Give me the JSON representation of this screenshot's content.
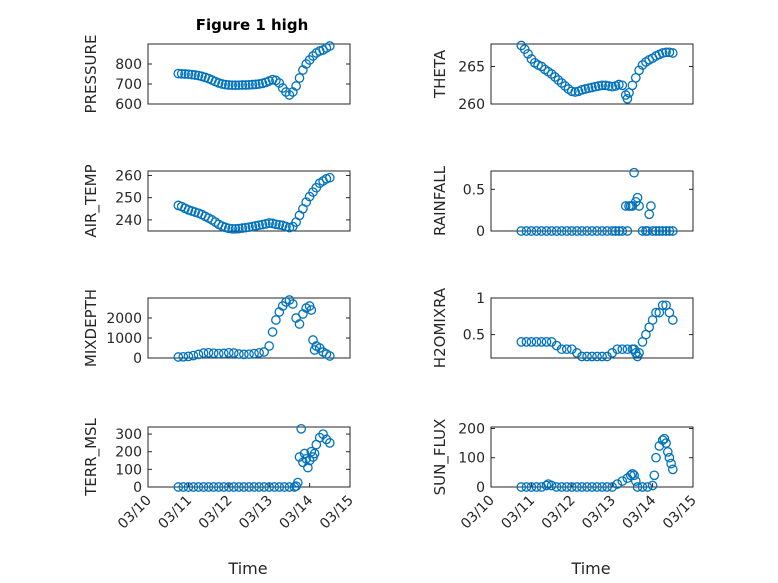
{
  "figure": {
    "title": "Figure 1 high",
    "marker_color": "#0072bd"
  },
  "chart_data": [
    {
      "type": "scatter",
      "panel": "PRESSURE",
      "ylabel": "PRESSURE",
      "xlabel": "",
      "xlim": [
        "03/10",
        "03/15"
      ],
      "ylim": [
        600,
        900
      ],
      "yticks": [
        600,
        700,
        800
      ],
      "ytick_labels": [
        "600",
        "700",
        "800"
      ],
      "grid": true,
      "minor_grid": true,
      "title": "Figure 1 high",
      "x": [
        "03/10 18:00",
        "03/10 20:00",
        "03/10 22:00",
        "03/11 00:00",
        "03/11 02:00",
        "03/11 04:00",
        "03/11 06:00",
        "03/11 08:00",
        "03/11 10:00",
        "03/11 12:00",
        "03/11 14:00",
        "03/11 16:00",
        "03/11 18:00",
        "03/11 20:00",
        "03/11 22:00",
        "03/12 00:00",
        "03/12 02:00",
        "03/12 04:00",
        "03/12 06:00",
        "03/12 08:00",
        "03/12 10:00",
        "03/12 12:00",
        "03/12 14:00",
        "03/12 16:00",
        "03/12 18:00",
        "03/12 20:00",
        "03/12 22:00",
        "03/13 00:00",
        "03/13 02:00",
        "03/13 04:00",
        "03/13 06:00",
        "03/13 08:00",
        "03/13 10:00",
        "03/13 12:00",
        "03/13 14:00",
        "03/13 16:00",
        "03/13 18:00",
        "03/13 20:00",
        "03/13 22:00",
        "03/14 00:00",
        "03/14 02:00",
        "03/14 04:00",
        "03/14 06:00",
        "03/14 08:00",
        "03/14 10:00",
        "03/14 12:00"
      ],
      "y": [
        752,
        751,
        750,
        749,
        747,
        745,
        742,
        738,
        733,
        727,
        720,
        712,
        705,
        700,
        697,
        695,
        694,
        694,
        694,
        695,
        695,
        696,
        697,
        698,
        700,
        703,
        708,
        715,
        722,
        718,
        705,
        680,
        660,
        645,
        660,
        690,
        730,
        770,
        800,
        820,
        840,
        855,
        865,
        870,
        880,
        890
      ]
    },
    {
      "type": "scatter",
      "panel": "THETA",
      "ylabel": "THETA",
      "xlabel": "",
      "xlim": [
        "03/10",
        "03/15"
      ],
      "ylim": [
        260,
        268
      ],
      "yticks": [
        260,
        265
      ],
      "ytick_labels": [
        "260",
        "265"
      ],
      "grid": true,
      "minor_grid": true,
      "x": [
        "03/10 18:00",
        "03/10 20:00",
        "03/10 22:00",
        "03/11 00:00",
        "03/11 02:00",
        "03/11 04:00",
        "03/11 06:00",
        "03/11 08:00",
        "03/11 10:00",
        "03/11 12:00",
        "03/11 14:00",
        "03/11 16:00",
        "03/11 18:00",
        "03/11 20:00",
        "03/11 22:00",
        "03/12 00:00",
        "03/12 02:00",
        "03/12 04:00",
        "03/12 06:00",
        "03/12 08:00",
        "03/12 10:00",
        "03/12 12:00",
        "03/12 14:00",
        "03/12 16:00",
        "03/12 18:00",
        "03/12 20:00",
        "03/12 22:00",
        "03/13 00:00",
        "03/13 02:00",
        "03/13 04:00",
        "03/13 06:00",
        "03/13 08:00",
        "03/13 09:00",
        "03/13 10:00",
        "03/13 12:00",
        "03/13 14:00",
        "03/13 16:00",
        "03/13 18:00",
        "03/13 20:00",
        "03/13 22:00",
        "03/14 00:00",
        "03/14 02:00",
        "03/14 04:00",
        "03/14 06:00",
        "03/14 08:00",
        "03/14 10:00",
        "03/14 12:00"
      ],
      "y": [
        267.8,
        267.3,
        266.7,
        266.0,
        265.5,
        265.2,
        265.0,
        264.6,
        264.3,
        264.0,
        263.6,
        263.2,
        262.8,
        262.4,
        262.0,
        261.7,
        261.6,
        261.7,
        261.9,
        262.0,
        262.1,
        262.2,
        262.3,
        262.4,
        262.5,
        262.5,
        262.4,
        262.3,
        262.4,
        262.6,
        262.5,
        261.2,
        260.7,
        261.5,
        262.5,
        263.5,
        264.5,
        265.2,
        265.6,
        265.9,
        266.1,
        266.4,
        266.6,
        266.8,
        266.9,
        266.9,
        266.8
      ]
    },
    {
      "type": "scatter",
      "panel": "AIR_TEMP",
      "ylabel": "AIR_TEMP",
      "xlabel": "",
      "xlim": [
        "03/10",
        "03/15"
      ],
      "ylim": [
        235,
        262
      ],
      "yticks": [
        240,
        250,
        260
      ],
      "ytick_labels": [
        "240",
        "250",
        "260"
      ],
      "grid": true,
      "minor_grid": true,
      "x": [
        "03/10 18:00",
        "03/10 20:00",
        "03/10 22:00",
        "03/11 00:00",
        "03/11 02:00",
        "03/11 04:00",
        "03/11 06:00",
        "03/11 08:00",
        "03/11 10:00",
        "03/11 12:00",
        "03/11 14:00",
        "03/11 16:00",
        "03/11 18:00",
        "03/11 20:00",
        "03/11 22:00",
        "03/12 00:00",
        "03/12 02:00",
        "03/12 04:00",
        "03/12 06:00",
        "03/12 08:00",
        "03/12 10:00",
        "03/12 12:00",
        "03/12 14:00",
        "03/12 16:00",
        "03/12 18:00",
        "03/12 20:00",
        "03/12 22:00",
        "03/13 00:00",
        "03/13 02:00",
        "03/13 04:00",
        "03/13 06:00",
        "03/13 08:00",
        "03/13 10:00",
        "03/13 12:00",
        "03/13 14:00",
        "03/13 16:00",
        "03/13 18:00",
        "03/13 20:00",
        "03/13 22:00",
        "03/14 00:00",
        "03/14 02:00",
        "03/14 04:00",
        "03/14 06:00",
        "03/14 08:00",
        "03/14 10:00",
        "03/14 12:00"
      ],
      "y": [
        246.5,
        246.0,
        245.2,
        244.5,
        244.0,
        243.5,
        243.0,
        242.4,
        241.6,
        240.8,
        240.0,
        239.0,
        238.0,
        237.2,
        236.6,
        236.2,
        236.0,
        236.0,
        236.1,
        236.3,
        236.5,
        236.7,
        237.0,
        237.3,
        237.6,
        237.9,
        238.2,
        238.6,
        238.4,
        238.0,
        237.8,
        237.5,
        237.0,
        236.5,
        237.0,
        239.0,
        242.0,
        245.0,
        248.0,
        250.5,
        252.5,
        254.5,
        256.5,
        257.5,
        258.5,
        259.0
      ]
    },
    {
      "type": "scatter",
      "panel": "RAINFALL",
      "ylabel": "RAINFALL",
      "xlabel": "",
      "xlim": [
        "03/10",
        "03/15"
      ],
      "ylim": [
        0,
        0.72
      ],
      "yticks": [
        0,
        0.5
      ],
      "ytick_labels": [
        "0",
        "0.5"
      ],
      "grid": true,
      "minor_grid": true,
      "x": [
        "03/10 18:00",
        "03/10 21:00",
        "03/11 00:00",
        "03/11 03:00",
        "03/11 06:00",
        "03/11 09:00",
        "03/11 12:00",
        "03/11 15:00",
        "03/11 18:00",
        "03/11 21:00",
        "03/12 00:00",
        "03/12 03:00",
        "03/12 06:00",
        "03/12 09:00",
        "03/12 12:00",
        "03/12 15:00",
        "03/12 18:00",
        "03/12 21:00",
        "03/13 00:00",
        "03/13 02:00",
        "03/13 04:00",
        "03/13 06:00",
        "03/13 08:00",
        "03/13 09:00",
        "03/13 10:00",
        "03/13 11:00",
        "03/13 12:00",
        "03/13 13:00",
        "03/13 14:00",
        "03/13 15:00",
        "03/13 16:00",
        "03/13 18:00",
        "03/13 20:00",
        "03/13 21:00",
        "03/13 22:00",
        "03/13 23:00",
        "03/14 00:00",
        "03/14 02:00",
        "03/14 04:00",
        "03/14 06:00",
        "03/14 08:00",
        "03/14 10:00",
        "03/14 12:00"
      ],
      "y": [
        0,
        0,
        0,
        0,
        0,
        0,
        0,
        0,
        0,
        0,
        0,
        0,
        0,
        0,
        0,
        0,
        0,
        0,
        0,
        0,
        0,
        0,
        0.3,
        0,
        0.3,
        0.3,
        0.3,
        0.7,
        0.35,
        0.4,
        0.3,
        0,
        0,
        0,
        0.2,
        0.3,
        0,
        0,
        0,
        0,
        0,
        0,
        0
      ]
    },
    {
      "type": "scatter",
      "panel": "MIXDEPTH",
      "ylabel": "MIXDEPTH",
      "xlabel": "",
      "xlim": [
        "03/10",
        "03/15"
      ],
      "ylim": [
        0,
        3000
      ],
      "yticks": [
        0,
        1000,
        2000
      ],
      "ytick_labels": [
        "0",
        "1000",
        "2000"
      ],
      "grid": true,
      "minor_grid": true,
      "x": [
        "03/10 18:00",
        "03/10 21:00",
        "03/11 00:00",
        "03/11 03:00",
        "03/11 06:00",
        "03/11 09:00",
        "03/11 12:00",
        "03/11 15:00",
        "03/11 18:00",
        "03/11 21:00",
        "03/12 00:00",
        "03/12 03:00",
        "03/12 06:00",
        "03/12 09:00",
        "03/12 12:00",
        "03/12 15:00",
        "03/12 18:00",
        "03/12 21:00",
        "03/13 00:00",
        "03/13 02:00",
        "03/13 04:00",
        "03/13 06:00",
        "03/13 08:00",
        "03/13 10:00",
        "03/13 12:00",
        "03/13 14:00",
        "03/13 16:00",
        "03/13 18:00",
        "03/13 20:00",
        "03/13 22:00",
        "03/14 00:00",
        "03/14 01:00",
        "03/14 02:00",
        "03/14 03:00",
        "03/14 04:00",
        "03/14 06:00",
        "03/14 08:00",
        "03/14 10:00",
        "03/14 12:00"
      ],
      "y": [
        50,
        60,
        80,
        120,
        180,
        250,
        260,
        240,
        220,
        230,
        260,
        250,
        200,
        180,
        190,
        220,
        260,
        300,
        600,
        1300,
        1900,
        2300,
        2600,
        2800,
        2900,
        2700,
        2000,
        1700,
        2200,
        2500,
        2600,
        2400,
        900,
        400,
        600,
        500,
        300,
        200,
        100
      ]
    },
    {
      "type": "scatter",
      "panel": "H2OMIXRA",
      "ylabel": "H2OMIXRA",
      "xlabel": "",
      "xlim": [
        "03/10",
        "03/15"
      ],
      "ylim": [
        0.18,
        1.0
      ],
      "yticks": [
        0.5,
        1
      ],
      "ytick_labels": [
        "0.5",
        "1"
      ],
      "grid": true,
      "minor_grid": true,
      "x": [
        "03/10 18:00",
        "03/10 21:00",
        "03/11 00:00",
        "03/11 03:00",
        "03/11 06:00",
        "03/11 09:00",
        "03/11 12:00",
        "03/11 15:00",
        "03/11 18:00",
        "03/11 21:00",
        "03/12 00:00",
        "03/12 03:00",
        "03/12 06:00",
        "03/12 09:00",
        "03/12 12:00",
        "03/12 15:00",
        "03/12 18:00",
        "03/12 21:00",
        "03/13 00:00",
        "03/13 03:00",
        "03/13 06:00",
        "03/13 09:00",
        "03/13 12:00",
        "03/13 13:00",
        "03/13 14:00",
        "03/13 15:00",
        "03/13 16:00",
        "03/13 18:00",
        "03/13 20:00",
        "03/13 22:00",
        "03/14 00:00",
        "03/14 02:00",
        "03/14 04:00",
        "03/14 06:00",
        "03/14 08:00",
        "03/14 10:00",
        "03/14 12:00"
      ],
      "y": [
        0.4,
        0.4,
        0.4,
        0.4,
        0.4,
        0.4,
        0.4,
        0.35,
        0.3,
        0.3,
        0.3,
        0.25,
        0.2,
        0.2,
        0.2,
        0.2,
        0.2,
        0.2,
        0.25,
        0.3,
        0.3,
        0.3,
        0.3,
        0.3,
        0.25,
        0.2,
        0.25,
        0.4,
        0.5,
        0.6,
        0.7,
        0.8,
        0.8,
        0.9,
        0.9,
        0.8,
        0.7
      ]
    },
    {
      "type": "scatter",
      "panel": "TERR_MSL",
      "ylabel": "TERR_MSL",
      "xlabel": "Time",
      "xlim": [
        "03/10",
        "03/15"
      ],
      "ylim": [
        0,
        340
      ],
      "yticks": [
        0,
        100,
        200,
        300
      ],
      "ytick_labels": [
        "0",
        "100",
        "200",
        "300"
      ],
      "xticks": [
        "03/10",
        "03/11",
        "03/12",
        "03/13",
        "03/14",
        "03/15"
      ],
      "grid": true,
      "minor_grid": true,
      "x": [
        "03/10 18:00",
        "03/10 21:00",
        "03/11 00:00",
        "03/11 03:00",
        "03/11 06:00",
        "03/11 09:00",
        "03/11 12:00",
        "03/11 15:00",
        "03/11 18:00",
        "03/11 21:00",
        "03/12 00:00",
        "03/12 03:00",
        "03/12 06:00",
        "03/12 09:00",
        "03/12 12:00",
        "03/12 15:00",
        "03/12 18:00",
        "03/12 21:00",
        "03/13 00:00",
        "03/13 03:00",
        "03/13 06:00",
        "03/13 09:00",
        "03/13 12:00",
        "03/13 15:00",
        "03/13 16:00",
        "03/13 17:00",
        "03/13 18:00",
        "03/13 19:00",
        "03/13 20:00",
        "03/13 21:00",
        "03/13 22:00",
        "03/13 23:00",
        "03/14 00:00",
        "03/14 01:00",
        "03/14 02:00",
        "03/14 03:00",
        "03/14 04:00",
        "03/14 06:00",
        "03/14 08:00",
        "03/14 10:00",
        "03/14 12:00"
      ],
      "y": [
        0,
        0,
        0,
        0,
        0,
        0,
        0,
        0,
        0,
        0,
        0,
        0,
        0,
        0,
        0,
        0,
        0,
        0,
        0,
        0,
        0,
        0,
        0,
        0,
        5,
        25,
        170,
        330,
        140,
        190,
        160,
        110,
        150,
        200,
        170,
        190,
        240,
        280,
        300,
        270,
        250
      ]
    },
    {
      "type": "scatter",
      "panel": "SUN_FLUX",
      "ylabel": "SUN_FLUX",
      "xlabel": "Time",
      "xlim": [
        "03/10",
        "03/15"
      ],
      "ylim": [
        0,
        205
      ],
      "yticks": [
        0,
        100,
        200
      ],
      "ytick_labels": [
        "0",
        "100",
        "200"
      ],
      "xticks": [
        "03/10",
        "03/11",
        "03/12",
        "03/13",
        "03/14",
        "03/15"
      ],
      "grid": true,
      "minor_grid": true,
      "x": [
        "03/10 18:00",
        "03/10 21:00",
        "03/11 00:00",
        "03/11 03:00",
        "03/11 06:00",
        "03/11 09:00",
        "03/11 10:00",
        "03/11 12:00",
        "03/11 15:00",
        "03/11 18:00",
        "03/11 21:00",
        "03/12 00:00",
        "03/12 03:00",
        "03/12 06:00",
        "03/12 09:00",
        "03/12 12:00",
        "03/12 15:00",
        "03/12 18:00",
        "03/12 21:00",
        "03/13 00:00",
        "03/13 03:00",
        "03/13 06:00",
        "03/13 09:00",
        "03/13 11:00",
        "03/13 12:00",
        "03/13 13:00",
        "03/13 14:00",
        "03/13 15:00",
        "03/13 18:00",
        "03/13 21:00",
        "03/14 00:00",
        "03/14 01:00",
        "03/14 02:00",
        "03/14 04:00",
        "03/14 06:00",
        "03/14 07:00",
        "03/14 08:00",
        "03/14 09:00",
        "03/14 10:00",
        "03/14 11:00",
        "03/14 12:00"
      ],
      "y": [
        0,
        0,
        0,
        0,
        0,
        5,
        10,
        5,
        0,
        0,
        0,
        0,
        0,
        0,
        0,
        0,
        0,
        0,
        0,
        0,
        10,
        20,
        30,
        40,
        45,
        40,
        20,
        0,
        0,
        0,
        5,
        40,
        100,
        140,
        160,
        165,
        150,
        120,
        100,
        80,
        60
      ]
    }
  ]
}
